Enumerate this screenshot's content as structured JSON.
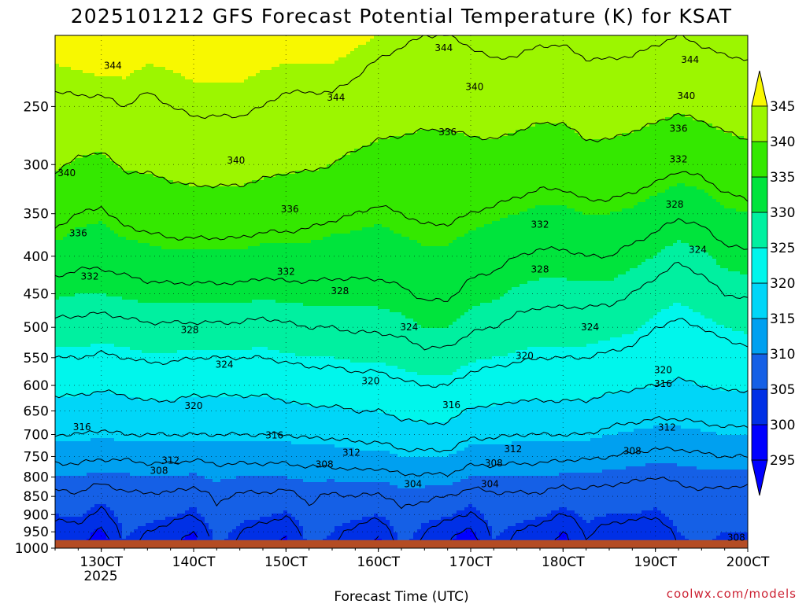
{
  "chart_data": {
    "type": "heatmap",
    "title": "2025101212 GFS Forecast Potential Temperature (K) for KSAT",
    "xlabel": "Forecast Time (UTC)",
    "ylabel": "",
    "credit": "coolwx.com/models",
    "x_tick_labels": [
      "130CT",
      "140CT",
      "150CT",
      "160CT",
      "170CT",
      "180CT",
      "190CT",
      "200CT"
    ],
    "x_tick_hours": [
      12,
      36,
      60,
      84,
      108,
      132,
      156,
      180
    ],
    "x_year_label": "2025",
    "xlim_hours": [
      0,
      180
    ],
    "y_tick_labels": [
      "250",
      "300",
      "350",
      "400",
      "450",
      "500",
      "550",
      "600",
      "650",
      "700",
      "750",
      "800",
      "850",
      "900",
      "950",
      "1000"
    ],
    "y_tick_values": [
      250,
      300,
      350,
      400,
      450,
      500,
      550,
      600,
      650,
      700,
      750,
      800,
      850,
      900,
      950,
      1000
    ],
    "ylim_pressure_hpa": [
      200,
      1000
    ],
    "colorbar": {
      "levels": [
        295,
        300,
        305,
        310,
        315,
        320,
        325,
        330,
        335,
        340,
        345
      ],
      "labels": [
        "295",
        "300",
        "305",
        "310",
        "315",
        "320",
        "325",
        "330",
        "335",
        "340",
        "345"
      ],
      "colors": [
        "#0000ff",
        "#0000ff",
        "#0030e6",
        "#1560e6",
        "#00a0f0",
        "#00d6f8",
        "#00f6ec",
        "#00f0a0",
        "#00e43c",
        "#34e800",
        "#9cf600",
        "#f8f800"
      ]
    },
    "surface_color": "#b44c24",
    "surface_pressure_hpa": 975,
    "profile_pressures_hpa": [
      1000,
      975,
      950,
      925,
      900,
      850,
      800,
      750,
      700,
      650,
      600,
      550,
      500,
      450,
      400,
      350,
      300,
      250,
      200
    ],
    "profiles": [
      {
        "hour": 0,
        "theta_k": [
          300,
          301,
          302.5,
          303.5,
          305,
          307,
          310,
          313,
          316,
          318.5,
          321,
          324,
          327,
          330.5,
          334,
          337,
          340.5,
          343.5,
          346
        ]
      },
      {
        "hour": 6,
        "theta_k": [
          301,
          301.5,
          302.5,
          304,
          305.5,
          307.5,
          310,
          313,
          316,
          318.5,
          321,
          324,
          327,
          330,
          333,
          336,
          339.5,
          343.5,
          346.5
        ]
      },
      {
        "hour": 12,
        "theta_k": [
          297,
          297.5,
          299,
          301,
          303,
          306,
          309,
          312.5,
          315.5,
          318,
          320.5,
          323.5,
          326.5,
          330,
          333,
          335.5,
          339,
          343.5,
          347
        ]
      },
      {
        "hour": 18,
        "theta_k": [
          305,
          305,
          305.5,
          306,
          306.5,
          307.5,
          309.5,
          312.5,
          316,
          318.5,
          321,
          324,
          327,
          330.5,
          333.5,
          337,
          340.5,
          344,
          346.5
        ]
      },
      {
        "hour": 24,
        "theta_k": [
          303,
          303.5,
          304,
          305,
          306,
          307.5,
          310,
          313,
          316,
          319,
          321.5,
          324.5,
          327.5,
          331,
          334,
          337.5,
          340.5,
          343.5,
          346
        ]
      },
      {
        "hour": 30,
        "theta_k": [
          301,
          301.5,
          302.5,
          304,
          305.5,
          307.5,
          310,
          313,
          316,
          319,
          321.5,
          324.5,
          327.5,
          331,
          334.5,
          338,
          341,
          344,
          346
        ]
      },
      {
        "hour": 36,
        "theta_k": [
          298,
          298.5,
          300,
          302,
          304,
          306.5,
          309.5,
          312.5,
          316,
          318.5,
          321,
          324,
          327.5,
          331,
          334.5,
          338,
          341.5,
          344.5,
          346
        ]
      },
      {
        "hour": 42,
        "theta_k": [
          306,
          306,
          306.5,
          307,
          307.5,
          308.5,
          310.5,
          313,
          316,
          318.5,
          321,
          324,
          327.5,
          331,
          334.5,
          338,
          341.5,
          344.5,
          346
        ]
      },
      {
        "hour": 48,
        "theta_k": [
          303,
          303.5,
          304,
          305,
          306,
          307.5,
          310,
          313,
          316,
          318.5,
          321,
          324,
          327.5,
          331,
          334.5,
          338,
          341.5,
          344.5,
          346
        ]
      },
      {
        "hour": 54,
        "theta_k": [
          301,
          301.5,
          302.5,
          304,
          305.5,
          307.5,
          310,
          313,
          316,
          318.5,
          321,
          324,
          327,
          330.5,
          334,
          337.5,
          341,
          344,
          346
        ]
      },
      {
        "hour": 60,
        "theta_k": [
          299,
          299.5,
          300.5,
          302.5,
          304.5,
          307,
          310,
          313,
          316,
          319,
          321.5,
          324.5,
          327.5,
          331,
          334,
          337.5,
          340.5,
          343.5,
          346
        ]
      },
      {
        "hour": 66,
        "theta_k": [
          306,
          306,
          306.5,
          307,
          307.5,
          308.5,
          310.5,
          313.5,
          316.5,
          319.5,
          322,
          325,
          328,
          331,
          334,
          337,
          340.5,
          343.5,
          346
        ]
      },
      {
        "hour": 72,
        "theta_k": [
          304,
          304.5,
          305,
          305.5,
          306,
          307.5,
          310.5,
          313.5,
          316.5,
          319.5,
          322,
          325,
          328,
          331,
          333.5,
          336.5,
          340,
          343.5,
          346
        ]
      },
      {
        "hour": 78,
        "theta_k": [
          302,
          302.5,
          303,
          304.5,
          306,
          308,
          311,
          314,
          317,
          320,
          322.5,
          325.5,
          328.5,
          331,
          333.5,
          336,
          339,
          343,
          345.5
        ]
      },
      {
        "hour": 84,
        "theta_k": [
          299,
          299.5,
          301,
          303,
          305,
          307.5,
          310.5,
          314,
          317,
          320,
          322.5,
          325.5,
          328.5,
          331,
          333.5,
          335.5,
          338.5,
          342,
          345
        ]
      },
      {
        "hour": 90,
        "theta_k": [
          306,
          306,
          306.5,
          307,
          307.5,
          309,
          311.5,
          315,
          318,
          321,
          323.5,
          326,
          329,
          331.5,
          334,
          336,
          338.5,
          341.5,
          344.5
        ]
      },
      {
        "hour": 96,
        "theta_k": [
          303,
          303.5,
          304,
          305,
          306.5,
          308.5,
          311.5,
          315,
          318.5,
          321.5,
          324,
          327,
          330,
          332.5,
          334.5,
          336.5,
          338.5,
          341,
          344
        ]
      },
      {
        "hour": 102,
        "theta_k": [
          300,
          300.5,
          301.5,
          303.5,
          305.5,
          308,
          311.5,
          315,
          318.5,
          321.5,
          324,
          327,
          330,
          332.5,
          334.5,
          336.5,
          338.5,
          341,
          344
        ]
      },
      {
        "hour": 108,
        "theta_k": [
          297,
          297.5,
          299,
          301,
          303.5,
          306.5,
          310,
          313.5,
          316.5,
          319.5,
          322.5,
          325.5,
          328.5,
          331,
          333.5,
          336,
          338.5,
          341.5,
          344.5
        ]
      },
      {
        "hour": 114,
        "theta_k": [
          305,
          305,
          305.5,
          306,
          306.5,
          307.5,
          310,
          313.5,
          316.5,
          319.5,
          322,
          325,
          328,
          330.5,
          333,
          335.5,
          338.5,
          342,
          345
        ]
      },
      {
        "hour": 120,
        "theta_k": [
          303,
          303.5,
          304,
          305,
          306,
          307.5,
          310,
          313,
          316,
          319,
          321.5,
          324.5,
          327,
          329.5,
          332,
          335,
          338,
          341.5,
          345
        ]
      },
      {
        "hour": 126,
        "theta_k": [
          302,
          302.5,
          303,
          304,
          305.5,
          307.5,
          310,
          313,
          316,
          319,
          321.5,
          324,
          326.5,
          329,
          331.5,
          334.5,
          337.5,
          341,
          344.5
        ]
      },
      {
        "hour": 132,
        "theta_k": [
          298,
          298.5,
          300,
          302,
          304,
          306.5,
          309.5,
          312.5,
          316,
          319,
          321.5,
          324,
          326.5,
          329,
          331.5,
          334.5,
          337.5,
          341,
          344.5
        ]
      },
      {
        "hour": 138,
        "theta_k": [
          304,
          304,
          304.5,
          305,
          305.5,
          307,
          309.5,
          312.5,
          316,
          319,
          321.5,
          324,
          326.5,
          329,
          332,
          335,
          338.5,
          342,
          345
        ]
      },
      {
        "hour": 144,
        "theta_k": [
          302,
          302.5,
          303,
          304,
          305,
          306.5,
          309,
          312,
          315,
          318,
          321,
          323.5,
          326,
          329,
          332,
          335,
          338.5,
          342,
          345
        ]
      },
      {
        "hour": 150,
        "theta_k": [
          301,
          301.5,
          302.5,
          303.5,
          305,
          306.5,
          308.5,
          311.5,
          314.5,
          317.5,
          320.5,
          323,
          325.5,
          328,
          331,
          334.5,
          338,
          341.5,
          345
        ]
      },
      {
        "hour": 156,
        "theta_k": [
          300,
          300.5,
          301.5,
          303,
          304.5,
          306,
          308,
          311,
          314,
          317,
          320,
          322,
          324,
          326.5,
          330,
          333.5,
          337.5,
          341,
          344.5
        ]
      },
      {
        "hour": 162,
        "theta_k": [
          304,
          304.5,
          305,
          305.5,
          306,
          307,
          308.5,
          311,
          314,
          317,
          319.5,
          321.5,
          323.5,
          325.5,
          328.5,
          332.5,
          336.5,
          340.5,
          344
        ]
      },
      {
        "hour": 168,
        "theta_k": [
          305,
          305.5,
          306,
          306.5,
          307,
          307.5,
          309,
          311.5,
          314.5,
          317.5,
          320,
          322,
          324,
          326.5,
          329.5,
          333,
          337,
          341,
          344.5
        ]
      },
      {
        "hour": 174,
        "theta_k": [
          304,
          304.5,
          305,
          305.5,
          306,
          307,
          309,
          312,
          315,
          318,
          320.5,
          322.5,
          325,
          328,
          331,
          334.5,
          338,
          341.5,
          345
        ]
      },
      {
        "hour": 180,
        "theta_k": [
          304,
          304.5,
          305,
          305.5,
          306,
          307,
          309,
          312,
          315,
          318,
          320.5,
          323,
          325.5,
          328.5,
          331.5,
          335,
          338.5,
          342,
          345
        ]
      }
    ],
    "contour_labels": [
      {
        "text": "344",
        "hour": 15,
        "hpa": 220
      },
      {
        "text": "344",
        "hour": 73,
        "hpa": 243
      },
      {
        "text": "344",
        "hour": 101,
        "hpa": 208
      },
      {
        "text": "344",
        "hour": 165,
        "hpa": 216
      },
      {
        "text": "340",
        "hour": 3,
        "hpa": 308
      },
      {
        "text": "340",
        "hour": 47,
        "hpa": 296
      },
      {
        "text": "340",
        "hour": 109,
        "hpa": 235
      },
      {
        "text": "340",
        "hour": 164,
        "hpa": 242
      },
      {
        "text": "336",
        "hour": 6,
        "hpa": 372
      },
      {
        "text": "336",
        "hour": 61,
        "hpa": 345
      },
      {
        "text": "336",
        "hour": 102,
        "hpa": 271
      },
      {
        "text": "336",
        "hour": 162,
        "hpa": 268
      },
      {
        "text": "332",
        "hour": 9,
        "hpa": 426
      },
      {
        "text": "332",
        "hour": 60,
        "hpa": 420
      },
      {
        "text": "332",
        "hour": 126,
        "hpa": 362
      },
      {
        "text": "332",
        "hour": 162,
        "hpa": 295
      },
      {
        "text": "328",
        "hour": 35,
        "hpa": 504
      },
      {
        "text": "328",
        "hour": 74,
        "hpa": 446
      },
      {
        "text": "328",
        "hour": 126,
        "hpa": 417
      },
      {
        "text": "328",
        "hour": 161,
        "hpa": 340
      },
      {
        "text": "324",
        "hour": 44,
        "hpa": 562
      },
      {
        "text": "324",
        "hour": 92,
        "hpa": 500
      },
      {
        "text": "324",
        "hour": 139,
        "hpa": 500
      },
      {
        "text": "324",
        "hour": 167,
        "hpa": 392
      },
      {
        "text": "320",
        "hour": 36,
        "hpa": 640
      },
      {
        "text": "320",
        "hour": 82,
        "hpa": 592
      },
      {
        "text": "320",
        "hour": 122,
        "hpa": 547
      },
      {
        "text": "320",
        "hour": 158,
        "hpa": 572
      },
      {
        "text": "316",
        "hour": 7,
        "hpa": 684
      },
      {
        "text": "316",
        "hour": 57,
        "hpa": 702
      },
      {
        "text": "316",
        "hour": 103,
        "hpa": 638
      },
      {
        "text": "316",
        "hour": 158,
        "hpa": 597
      },
      {
        "text": "312",
        "hour": 30,
        "hpa": 759
      },
      {
        "text": "312",
        "hour": 77,
        "hpa": 741
      },
      {
        "text": "312",
        "hour": 119,
        "hpa": 733
      },
      {
        "text": "312",
        "hour": 159,
        "hpa": 685
      },
      {
        "text": "308",
        "hour": 27,
        "hpa": 784
      },
      {
        "text": "308",
        "hour": 70,
        "hpa": 769
      },
      {
        "text": "308",
        "hour": 114,
        "hpa": 766
      },
      {
        "text": "308",
        "hour": 150,
        "hpa": 737
      },
      {
        "text": "308",
        "hour": 177,
        "hpa": 967
      },
      {
        "text": "304",
        "hour": 93,
        "hpa": 818
      },
      {
        "text": "304",
        "hour": 113,
        "hpa": 818
      }
    ]
  }
}
